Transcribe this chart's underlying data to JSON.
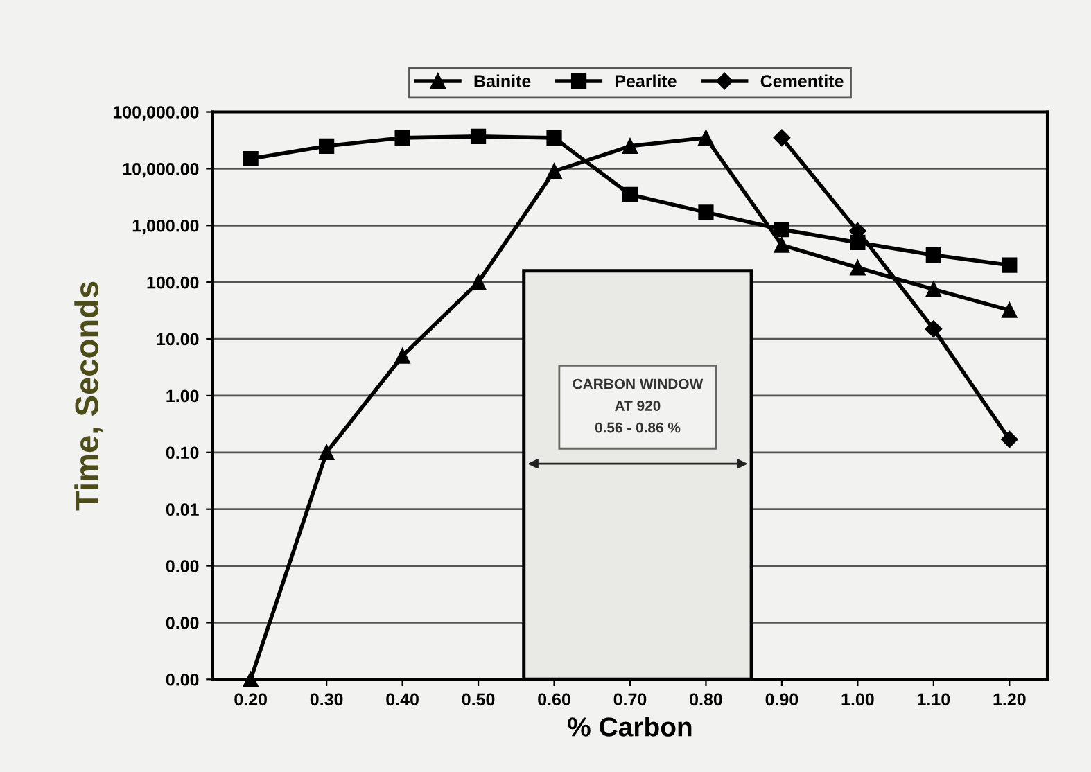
{
  "chart_data": {
    "type": "line",
    "xlabel": "% Carbon",
    "ylabel": "Time, Seconds",
    "log": "y",
    "grid": "y",
    "legend": "top",
    "x": [
      0.2,
      0.3,
      0.4,
      0.5,
      0.6,
      0.7,
      0.8,
      0.9,
      1.0,
      1.1,
      1.2
    ],
    "series": [
      {
        "name": "Bainite",
        "color": "#000000",
        "marker": "triangle",
        "values": [
          1e-05,
          0.1,
          5,
          100,
          9000,
          25000,
          35000,
          450,
          180,
          75,
          32
        ]
      },
      {
        "name": "Pearlite",
        "color": "#000000",
        "marker": "square",
        "values": [
          15000,
          25000,
          35000,
          37000,
          35000,
          3500,
          1700,
          850,
          500,
          300,
          200
        ]
      },
      {
        "name": "Cementite",
        "color": "#000000",
        "marker": "diamond",
        "x": [
          0.9,
          1.0,
          1.1,
          1.2
        ],
        "values": [
          35000,
          800,
          15,
          0.17
        ]
      }
    ],
    "xlim": [
      0.15,
      1.25
    ],
    "xticks": [
      {
        "value": 0.2,
        "label": "0.20"
      },
      {
        "value": 0.3,
        "label": "0.30"
      },
      {
        "value": 0.4,
        "label": "0.40"
      },
      {
        "value": 0.5,
        "label": "0.50"
      },
      {
        "value": 0.6,
        "label": "0.60"
      },
      {
        "value": 0.7,
        "label": "0.70"
      },
      {
        "value": 0.8,
        "label": "0.80"
      },
      {
        "value": 0.9,
        "label": "0.90"
      },
      {
        "value": 1.0,
        "label": "1.00"
      },
      {
        "value": 1.1,
        "label": "1.10"
      },
      {
        "value": 1.2,
        "label": "1.20"
      }
    ],
    "ylim": [
      1e-05,
      100000
    ],
    "yticks": [
      {
        "value": 1e-05,
        "label": "0.00"
      },
      {
        "value": 0.0001,
        "label": "0.00"
      },
      {
        "value": 0.001,
        "label": "0.00"
      },
      {
        "value": 0.01,
        "label": "0.01"
      },
      {
        "value": 0.1,
        "label": "0.10"
      },
      {
        "value": 1,
        "label": "1.00"
      },
      {
        "value": 10,
        "label": "10.00"
      },
      {
        "value": 100,
        "label": "100.00"
      },
      {
        "value": 1000,
        "label": "1,000.00"
      },
      {
        "value": 10000,
        "label": "10,000.00"
      },
      {
        "value": 100000,
        "label": "100,000.00"
      }
    ],
    "bands": [
      {
        "axis": "x",
        "from": 0.56,
        "to": 0.86,
        "label": "CARBON WINDOW\nAT 920\n0.56 - 0.86 %",
        "color": "#e9e9e5"
      }
    ]
  }
}
